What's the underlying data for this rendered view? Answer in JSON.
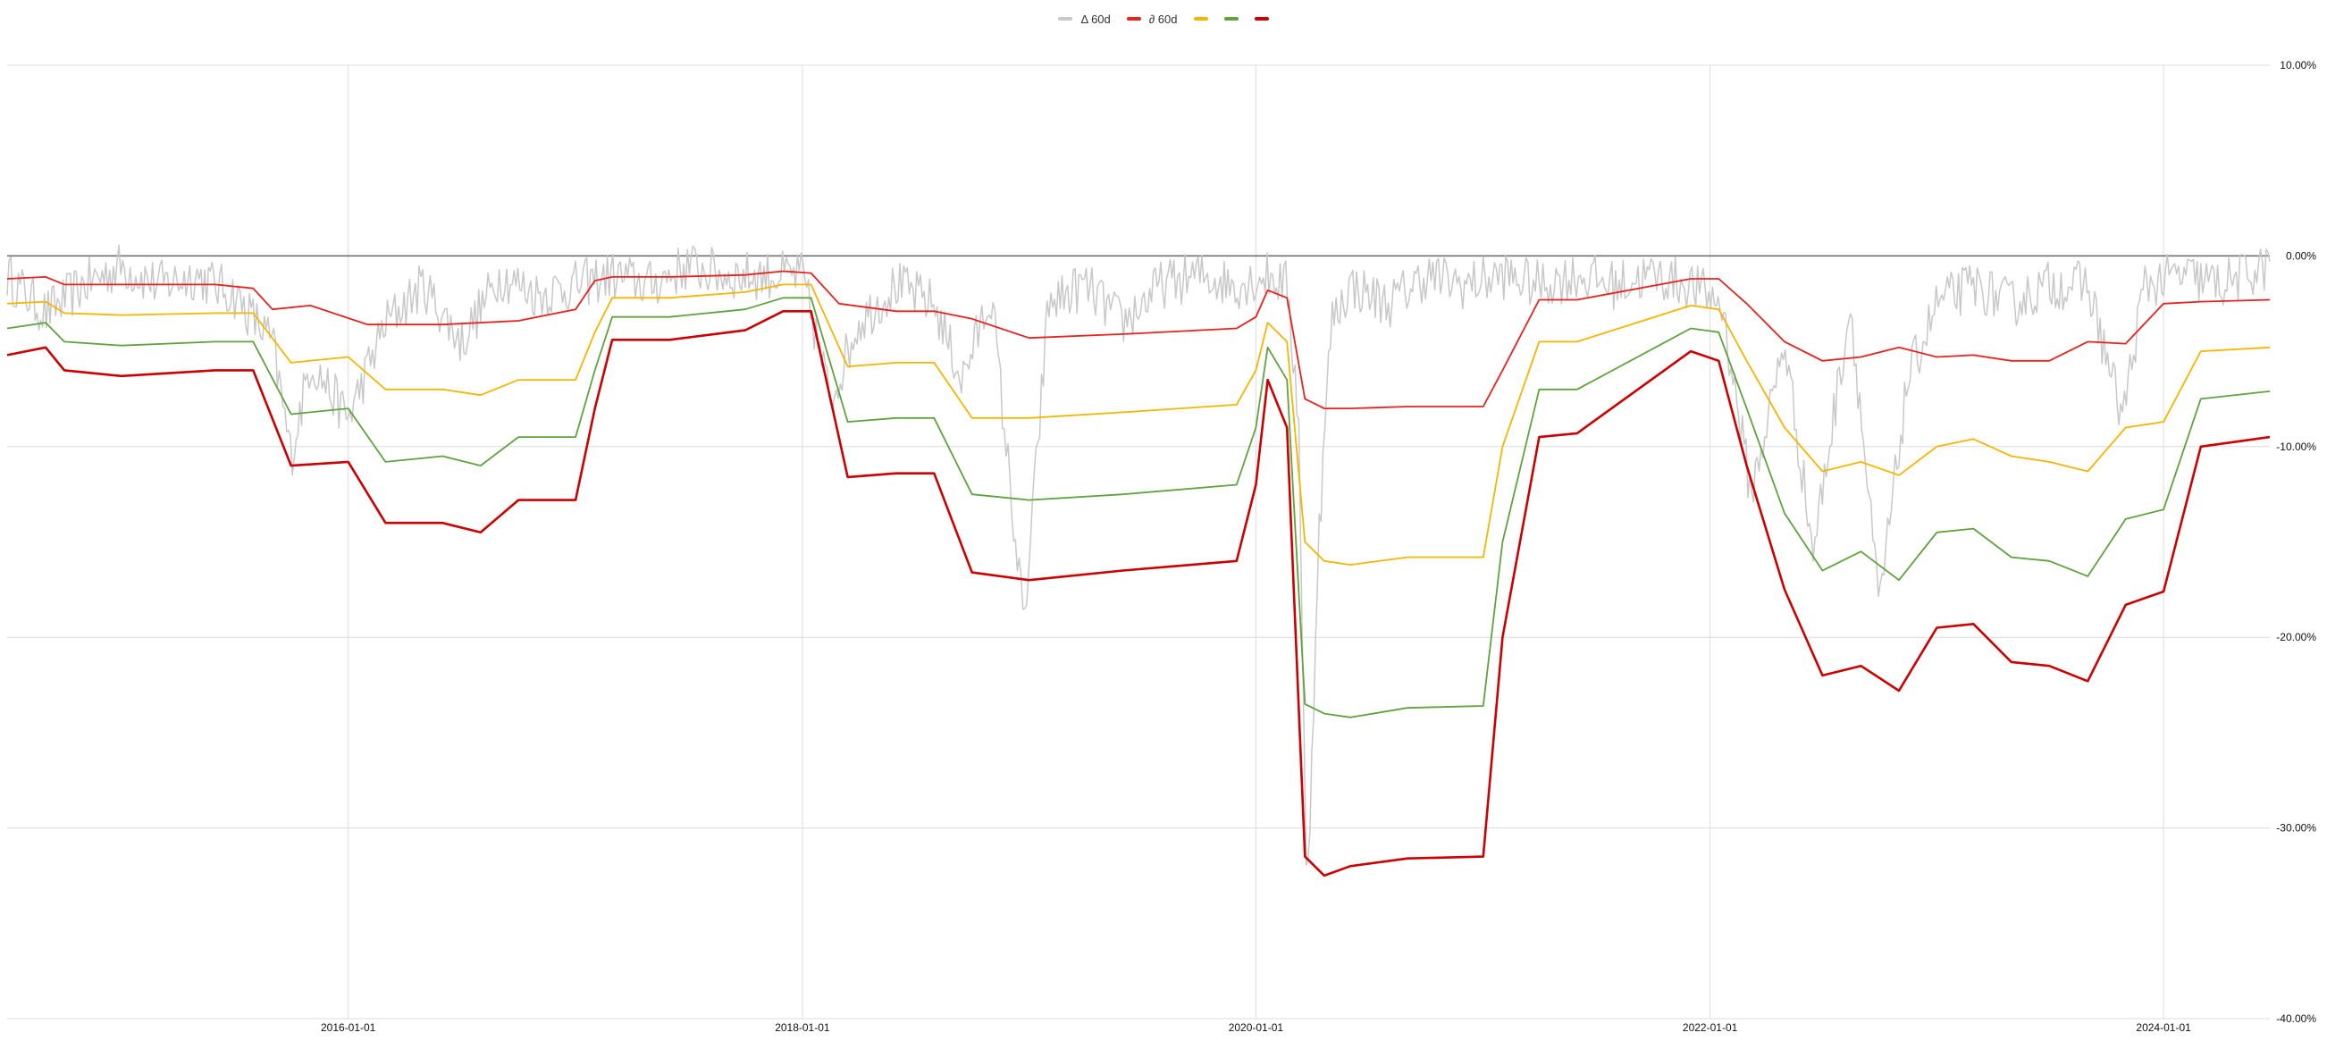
{
  "chart_data": {
    "type": "line",
    "title": "",
    "xlabel": "",
    "ylabel": "",
    "x_range": [
      "2014-07-01",
      "2024-06-20"
    ],
    "ylim": [
      -40,
      10
    ],
    "y_unit": "%",
    "y_ticks": [
      {
        "value": 10,
        "label": "10.00%"
      },
      {
        "value": 0,
        "label": "0.00%"
      },
      {
        "value": -10,
        "label": "-10.00%"
      },
      {
        "value": -20,
        "label": "-20.00%"
      },
      {
        "value": -30,
        "label": "-30.00%"
      },
      {
        "value": -40,
        "label": "-40.00%"
      }
    ],
    "x_ticks": [
      {
        "value": "2016-01-01",
        "label": "2016-01-01"
      },
      {
        "value": "2018-01-01",
        "label": "2018-01-01"
      },
      {
        "value": "2020-01-01",
        "label": "2020-01-01"
      },
      {
        "value": "2022-01-01",
        "label": "2022-01-01"
      },
      {
        "value": "2024-01-01",
        "label": "2024-01-01"
      }
    ],
    "grid": true,
    "zero_line": true,
    "legend_position": "top-center",
    "series": [
      {
        "name": "Δ 60d",
        "color": "#c8c8c8",
        "width": 1.5,
        "label": "Δ 60d",
        "x": [
          "2014-07-01",
          "2014-09-01",
          "2014-11-01",
          "2015-01-01",
          "2015-03-01",
          "2015-05-01",
          "2015-07-01",
          "2015-09-01",
          "2015-10-01",
          "2015-11-01",
          "2016-01-01",
          "2016-03-01",
          "2016-05-01",
          "2016-07-01",
          "2016-09-01",
          "2016-11-01",
          "2017-01-01",
          "2017-03-01",
          "2017-05-01",
          "2017-07-01",
          "2017-09-01",
          "2017-11-01",
          "2018-01-01",
          "2018-02-15",
          "2018-04-01",
          "2018-06-01",
          "2018-08-01",
          "2018-09-15",
          "2018-11-01",
          "2018-12-24",
          "2019-02-01",
          "2019-04-01",
          "2019-06-01",
          "2019-08-01",
          "2019-10-01",
          "2019-12-01",
          "2020-01-20",
          "2020-02-20",
          "2020-03-10",
          "2020-03-23",
          "2020-04-10",
          "2020-05-01",
          "2020-06-01",
          "2020-08-01",
          "2020-10-01",
          "2020-12-01",
          "2021-02-01",
          "2021-04-01",
          "2021-06-01",
          "2021-08-01",
          "2021-10-01",
          "2021-12-01",
          "2022-01-20",
          "2022-03-08",
          "2022-05-01",
          "2022-06-16",
          "2022-08-15",
          "2022-09-30",
          "2022-11-15",
          "2023-01-01",
          "2023-03-01",
          "2023-05-01",
          "2023-07-01",
          "2023-09-01",
          "2023-10-27",
          "2023-12-01",
          "2024-02-01",
          "2024-04-01",
          "2024-06-20"
        ],
        "values": [
          -0.5,
          -2.5,
          -1,
          0,
          -1,
          -0.5,
          -1.5,
          -4,
          -10,
          -5,
          -8,
          -3,
          -1,
          -4,
          -0.5,
          -1.5,
          -1,
          -0.5,
          -1,
          0,
          -0.5,
          -0.5,
          -0.5,
          -7,
          -3,
          -1,
          -2,
          -6,
          -1.5,
          -19,
          -2,
          -1,
          -3,
          -1,
          -0.5,
          -1,
          -0.5,
          -1,
          -8,
          -34,
          -15,
          -3,
          -1,
          -2,
          -0.5,
          -1,
          -0.5,
          -1,
          -0.5,
          -1,
          -0.5,
          -1,
          -2,
          -12,
          -4,
          -15,
          -2,
          -18,
          -6,
          -2,
          -1,
          -2,
          -1,
          -1,
          -8,
          -1,
          -0.5,
          -1,
          0
        ]
      },
      {
        "name": "∂ 60d",
        "color": "#e8211d",
        "width": 1.8,
        "label": "∂ 60d",
        "x": [
          "2014-07-01",
          "2014-09-01",
          "2014-10-01",
          "2015-01-01",
          "2015-06-01",
          "2015-08-01",
          "2015-09-01",
          "2015-11-01",
          "2016-02-01",
          "2016-06-01",
          "2016-10-01",
          "2017-01-01",
          "2017-02-01",
          "2017-03-01",
          "2017-06-01",
          "2017-10-01",
          "2017-12-01",
          "2018-01-15",
          "2018-03-01",
          "2018-06-01",
          "2018-08-01",
          "2018-10-01",
          "2019-01-01",
          "2019-06-01",
          "2019-12-01",
          "2020-01-01",
          "2020-01-20",
          "2020-02-20",
          "2020-03-20",
          "2020-04-20",
          "2020-06-01",
          "2020-09-01",
          "2021-01-01",
          "2021-02-01",
          "2021-04-01",
          "2021-06-01",
          "2021-12-01",
          "2022-01-15",
          "2022-03-01",
          "2022-05-01",
          "2022-07-01",
          "2022-09-01",
          "2022-11-01",
          "2023-01-01",
          "2023-03-01",
          "2023-05-01",
          "2023-07-01",
          "2023-09-01",
          "2023-11-01",
          "2024-01-01",
          "2024-03-01",
          "2024-06-20"
        ],
        "values": [
          -1.2,
          -1.1,
          -1.5,
          -1.5,
          -1.5,
          -1.7,
          -2.8,
          -2.6,
          -3.6,
          -3.6,
          -3.4,
          -2.8,
          -1.3,
          -1.1,
          -1.1,
          -1,
          -0.8,
          -0.9,
          -2.5,
          -2.9,
          -2.9,
          -3.3,
          -4.3,
          -4.1,
          -3.8,
          -3.2,
          -1.8,
          -2.2,
          -7.5,
          -8,
          -8,
          -7.9,
          -7.9,
          -6,
          -2.3,
          -2.3,
          -1.2,
          -1.2,
          -2.5,
          -4.5,
          -5.5,
          -5.3,
          -4.8,
          -5.3,
          -5.2,
          -5.5,
          -5.5,
          -4.5,
          -4.6,
          -2.5,
          -2.4,
          -2.3
        ]
      },
      {
        "name": "",
        "color": "#f6b500",
        "width": 1.8,
        "label": "",
        "x": [
          "2014-07-01",
          "2014-09-01",
          "2014-10-01",
          "2015-01-01",
          "2015-06-01",
          "2015-08-01",
          "2015-10-01",
          "2016-01-01",
          "2016-03-01",
          "2016-06-01",
          "2016-08-01",
          "2016-10-01",
          "2017-01-01",
          "2017-02-01",
          "2017-03-01",
          "2017-06-01",
          "2017-10-01",
          "2017-12-01",
          "2018-01-15",
          "2018-03-15",
          "2018-06-01",
          "2018-08-01",
          "2018-10-01",
          "2019-01-01",
          "2019-06-01",
          "2019-12-01",
          "2020-01-01",
          "2020-01-20",
          "2020-02-20",
          "2020-03-20",
          "2020-04-20",
          "2020-06-01",
          "2020-09-01",
          "2021-01-01",
          "2021-02-01",
          "2021-04-01",
          "2021-06-01",
          "2021-12-01",
          "2022-01-15",
          "2022-03-01",
          "2022-05-01",
          "2022-07-01",
          "2022-09-01",
          "2022-11-01",
          "2023-01-01",
          "2023-03-01",
          "2023-05-01",
          "2023-07-01",
          "2023-09-01",
          "2023-11-01",
          "2024-01-01",
          "2024-03-01",
          "2024-06-20"
        ],
        "values": [
          -2.5,
          -2.4,
          -3,
          -3.1,
          -3,
          -3,
          -5.6,
          -5.3,
          -7,
          -7,
          -7.3,
          -6.5,
          -6.5,
          -4,
          -2.2,
          -2.2,
          -1.9,
          -1.5,
          -1.5,
          -5.8,
          -5.6,
          -5.6,
          -8.5,
          -8.5,
          -8.2,
          -7.8,
          -6,
          -3.5,
          -4.5,
          -15,
          -16,
          -16.2,
          -15.8,
          -15.8,
          -10,
          -4.5,
          -4.5,
          -2.6,
          -2.8,
          -5.5,
          -9,
          -11.3,
          -10.8,
          -11.5,
          -10,
          -9.6,
          -10.5,
          -10.8,
          -11.3,
          -9,
          -8.7,
          -5,
          -4.8
        ]
      },
      {
        "name": "",
        "color": "#5ea33c",
        "width": 1.8,
        "label": "",
        "x": [
          "2014-07-01",
          "2014-09-01",
          "2014-10-01",
          "2015-01-01",
          "2015-06-01",
          "2015-08-01",
          "2015-10-01",
          "2016-01-01",
          "2016-03-01",
          "2016-06-01",
          "2016-08-01",
          "2016-10-01",
          "2017-01-01",
          "2017-02-01",
          "2017-03-01",
          "2017-06-01",
          "2017-10-01",
          "2017-12-01",
          "2018-01-15",
          "2018-03-15",
          "2018-06-01",
          "2018-08-01",
          "2018-10-01",
          "2019-01-01",
          "2019-06-01",
          "2019-12-01",
          "2020-01-01",
          "2020-01-20",
          "2020-02-20",
          "2020-03-20",
          "2020-04-20",
          "2020-06-01",
          "2020-09-01",
          "2021-01-01",
          "2021-02-01",
          "2021-04-01",
          "2021-06-01",
          "2021-12-01",
          "2022-01-15",
          "2022-03-01",
          "2022-05-01",
          "2022-07-01",
          "2022-09-01",
          "2022-11-01",
          "2023-01-01",
          "2023-03-01",
          "2023-05-01",
          "2023-07-01",
          "2023-09-01",
          "2023-11-01",
          "2024-01-01",
          "2024-03-01",
          "2024-06-20"
        ],
        "values": [
          -3.8,
          -3.5,
          -4.5,
          -4.7,
          -4.5,
          -4.5,
          -8.3,
          -8,
          -10.8,
          -10.5,
          -11,
          -9.5,
          -9.5,
          -6,
          -3.2,
          -3.2,
          -2.8,
          -2.2,
          -2.2,
          -8.7,
          -8.5,
          -8.5,
          -12.5,
          -12.8,
          -12.5,
          -12,
          -9,
          -4.8,
          -6.5,
          -23.5,
          -24,
          -24.2,
          -23.7,
          -23.6,
          -15,
          -7,
          -7,
          -3.8,
          -4,
          -8,
          -13.5,
          -16.5,
          -15.5,
          -17,
          -14.5,
          -14.3,
          -15.8,
          -16,
          -16.8,
          -13.8,
          -13.3,
          -7.5,
          -7.1
        ]
      },
      {
        "name": "",
        "color": "#cc0000",
        "width": 2.6,
        "label": "",
        "x": [
          "2014-07-01",
          "2014-09-01",
          "2014-10-01",
          "2015-01-01",
          "2015-06-01",
          "2015-08-01",
          "2015-10-01",
          "2016-01-01",
          "2016-03-01",
          "2016-06-01",
          "2016-08-01",
          "2016-10-01",
          "2017-01-01",
          "2017-02-01",
          "2017-03-01",
          "2017-06-01",
          "2017-10-01",
          "2017-12-01",
          "2018-01-15",
          "2018-03-15",
          "2018-06-01",
          "2018-08-01",
          "2018-10-01",
          "2019-01-01",
          "2019-06-01",
          "2019-12-01",
          "2020-01-01",
          "2020-01-20",
          "2020-02-20",
          "2020-03-20",
          "2020-04-20",
          "2020-06-01",
          "2020-09-01",
          "2021-01-01",
          "2021-02-01",
          "2021-04-01",
          "2021-06-01",
          "2021-12-01",
          "2022-01-15",
          "2022-03-01",
          "2022-05-01",
          "2022-07-01",
          "2022-09-01",
          "2022-11-01",
          "2023-01-01",
          "2023-03-01",
          "2023-05-01",
          "2023-07-01",
          "2023-09-01",
          "2023-11-01",
          "2024-01-01",
          "2024-03-01",
          "2024-06-20"
        ],
        "values": [
          -5.2,
          -4.8,
          -6,
          -6.3,
          -6,
          -6,
          -11,
          -10.8,
          -14,
          -14,
          -14.5,
          -12.8,
          -12.8,
          -8,
          -4.4,
          -4.4,
          -3.9,
          -2.9,
          -2.9,
          -11.6,
          -11.4,
          -11.4,
          -16.6,
          -17,
          -16.5,
          -16,
          -12,
          -6.5,
          -9,
          -31.5,
          -32.5,
          -32,
          -31.6,
          -31.5,
          -20,
          -9.5,
          -9.3,
          -5,
          -5.5,
          -11,
          -17.5,
          -22,
          -21.5,
          -22.8,
          -19.5,
          -19.3,
          -21.3,
          -21.5,
          -22.3,
          -18.3,
          -17.6,
          -10,
          -9.5
        ]
      }
    ]
  }
}
